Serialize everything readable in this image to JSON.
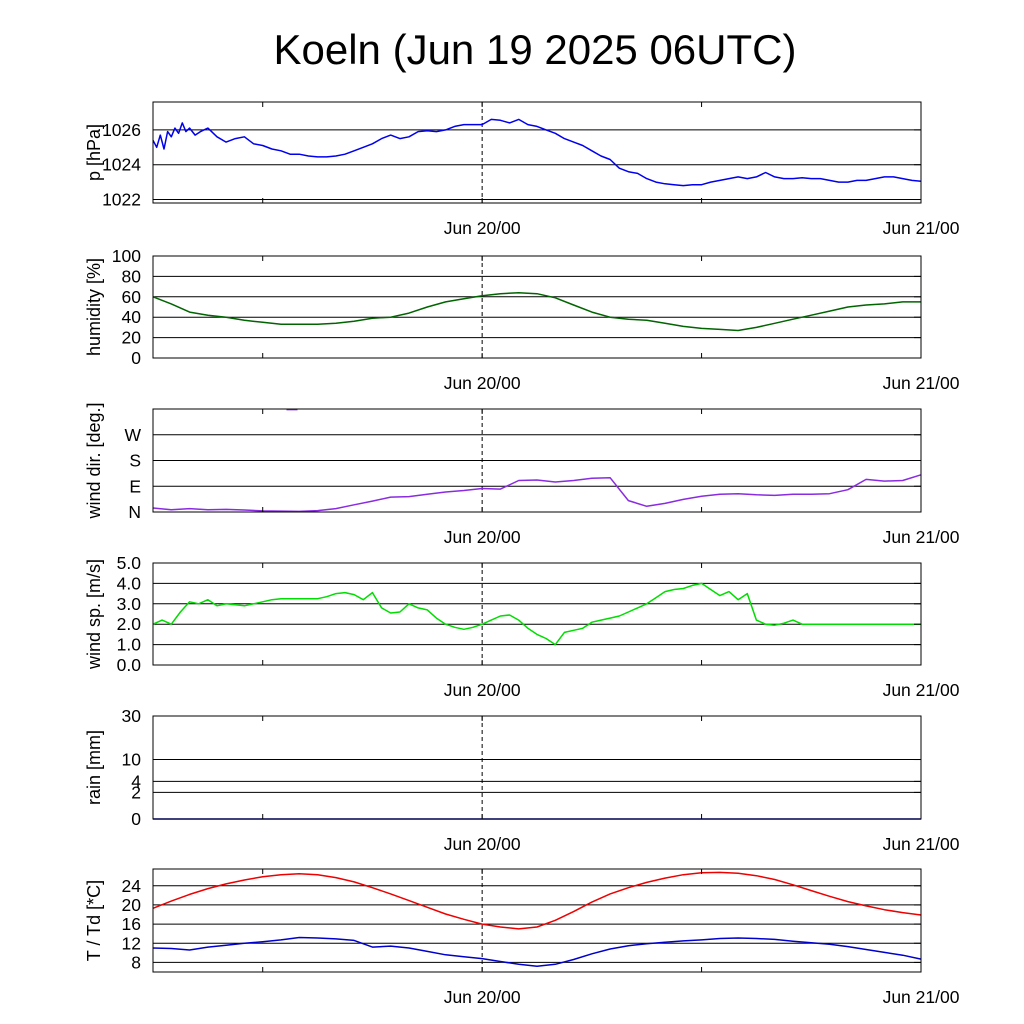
{
  "title": "Koeln (Jun 19 2025 06UTC)",
  "time_labels": [
    "Jun 20/00",
    "Jun 21/00"
  ],
  "chart_data": [
    {
      "type": "line",
      "id": "pressure",
      "ylabel": "p [hPa]",
      "ylim": [
        1021.8,
        1027.6
      ],
      "yticks": [
        1022,
        1024,
        1026
      ],
      "ytick_labels": [
        "1022",
        "1024",
        "1026"
      ],
      "xlim": [
        0,
        42
      ],
      "grid": true,
      "series": [
        {
          "color": "#0000ee",
          "x": [
            0,
            0.2,
            0.4,
            0.6,
            0.8,
            1,
            1.2,
            1.4,
            1.6,
            1.8,
            2,
            2.3,
            2.6,
            3,
            3.5,
            4,
            4.5,
            5,
            5.5,
            6,
            6.5,
            7,
            7.5,
            8,
            8.5,
            9,
            9.5,
            10,
            10.5,
            11,
            11.5,
            12,
            12.5,
            13,
            13.5,
            14,
            14.5,
            15,
            15.5,
            16,
            16.5,
            17,
            17.5,
            18,
            18.5,
            19,
            19.5,
            20,
            20.5,
            21,
            21.5,
            22,
            22.5,
            23,
            23.5,
            24,
            24.5,
            25,
            25.5,
            26,
            26.5,
            27,
            27.5,
            28,
            28.5,
            29,
            29.5,
            30,
            30.5,
            31,
            31.5,
            32,
            32.5,
            33,
            33.5,
            34,
            34.5,
            35,
            35.5,
            36,
            36.5,
            37,
            37.5,
            38,
            38.5,
            39,
            39.5,
            40,
            40.5,
            41,
            41.5,
            42
          ],
          "y": [
            1025.4,
            1025.0,
            1025.7,
            1024.9,
            1025.9,
            1025.6,
            1026.1,
            1025.8,
            1026.4,
            1025.9,
            1026.1,
            1025.7,
            1025.9,
            1026.1,
            1025.6,
            1025.3,
            1025.5,
            1025.6,
            1025.2,
            1025.1,
            1024.9,
            1024.8,
            1024.6,
            1024.6,
            1024.5,
            1024.45,
            1024.45,
            1024.5,
            1024.6,
            1024.8,
            1025.0,
            1025.2,
            1025.5,
            1025.7,
            1025.5,
            1025.6,
            1025.9,
            1025.95,
            1025.9,
            1026.0,
            1026.2,
            1026.3,
            1026.3,
            1026.3,
            1026.6,
            1026.55,
            1026.4,
            1026.6,
            1026.3,
            1026.2,
            1026.0,
            1025.8,
            1025.5,
            1025.3,
            1025.1,
            1024.8,
            1024.5,
            1024.3,
            1023.8,
            1023.6,
            1023.5,
            1023.2,
            1023.0,
            1022.9,
            1022.85,
            1022.8,
            1022.85,
            1022.85,
            1023.0,
            1023.1,
            1023.2,
            1023.3,
            1023.2,
            1023.3,
            1023.55,
            1023.3,
            1023.2,
            1023.2,
            1023.25,
            1023.2,
            1023.2,
            1023.1,
            1023.0,
            1023.0,
            1023.1,
            1023.1,
            1023.2,
            1023.3,
            1023.3,
            1023.2,
            1023.1,
            1023.05
          ]
        }
      ]
    },
    {
      "type": "line",
      "id": "humidity",
      "ylabel": "humidity [%]",
      "ylim": [
        0,
        100
      ],
      "yticks": [
        0,
        20,
        40,
        60,
        80,
        100
      ],
      "ytick_labels": [
        "0",
        "20",
        "40",
        "60",
        "80",
        "100"
      ],
      "xlim": [
        0,
        42
      ],
      "grid": true,
      "series": [
        {
          "color": "#006400",
          "x": [
            0,
            1,
            2,
            3,
            4,
            5,
            6,
            7,
            8,
            9,
            10,
            11,
            12,
            13,
            14,
            15,
            16,
            17,
            18,
            19,
            20,
            21,
            22,
            23,
            24,
            25,
            26,
            27,
            28,
            29,
            30,
            31,
            32,
            33,
            34,
            35,
            36,
            37,
            38,
            39,
            40,
            41,
            42
          ],
          "y": [
            60,
            53,
            45,
            42,
            40,
            37,
            35,
            33,
            33,
            33,
            34,
            36,
            39,
            40,
            44,
            50,
            55,
            58,
            61,
            63,
            64,
            63,
            59,
            52,
            45,
            40,
            38,
            37,
            34,
            31,
            29,
            28,
            27,
            30,
            34,
            38,
            42,
            46,
            50,
            52,
            53,
            55,
            55
          ]
        }
      ]
    },
    {
      "type": "line",
      "id": "wind-direction",
      "ylabel": "wind dir. [deg.]",
      "ylim": [
        0,
        360
      ],
      "yticks": [
        0,
        90,
        180,
        270
      ],
      "ytick_labels": [
        "N",
        "E",
        "S",
        "W"
      ],
      "xlim": [
        0,
        42
      ],
      "grid": true,
      "series": [
        {
          "color": "#8a2be2",
          "x": [
            0,
            1,
            2,
            3,
            4,
            5,
            6,
            7,
            8,
            9,
            10,
            11,
            12,
            13,
            14,
            15,
            16,
            17,
            18,
            19,
            20,
            21,
            22,
            23,
            24,
            25,
            26,
            27,
            28,
            29,
            30,
            31,
            32,
            33,
            34,
            35,
            36,
            37,
            38,
            39,
            40,
            41,
            42
          ],
          "y": [
            14,
            8,
            12,
            8,
            9,
            7,
            4,
            3,
            2,
            5,
            12,
            25,
            38,
            52,
            54,
            62,
            70,
            75,
            82,
            80,
            110,
            112,
            105,
            110,
            118,
            120,
            40,
            20,
            30,
            44,
            55,
            62,
            64,
            60,
            58,
            62,
            62,
            64,
            78,
            114,
            108,
            110,
            130
          ]
        },
        {
          "color": "#8a2be2",
          "x": [
            7.3,
            7.9
          ],
          "y": [
            358,
            358
          ]
        }
      ]
    },
    {
      "type": "line",
      "id": "wind-speed",
      "ylabel": "wind sp. [m/s]",
      "ylim": [
        0,
        5
      ],
      "yticks": [
        0,
        1,
        2,
        3,
        4,
        5
      ],
      "ytick_labels": [
        "0.0",
        "1.0",
        "2.0",
        "3.0",
        "4.0",
        "5.0"
      ],
      "xlim": [
        0,
        42
      ],
      "grid": true,
      "series": [
        {
          "color": "#00dd00",
          "x": [
            0,
            0.5,
            1,
            1.5,
            2,
            2.5,
            3,
            3.5,
            4,
            4.5,
            5,
            5.5,
            6,
            6.5,
            7,
            7.5,
            8,
            8.5,
            9,
            9.5,
            10,
            10.5,
            11,
            11.5,
            12,
            12.5,
            13,
            13.5,
            14,
            14.5,
            15,
            15.5,
            16,
            16.5,
            17,
            17.5,
            18,
            18.5,
            19,
            19.5,
            20,
            20.5,
            21,
            21.5,
            22,
            22.5,
            23,
            23.5,
            24,
            24.5,
            25,
            25.5,
            26,
            26.5,
            27,
            27.5,
            28,
            28.5,
            29,
            29.5,
            30,
            30.5,
            31,
            31.5,
            32,
            32.5,
            33,
            33.5,
            34,
            34.5,
            35,
            35.5,
            36,
            36.5,
            37,
            37.5,
            38,
            38.5,
            39,
            39.5,
            40,
            40.5,
            41,
            41.5,
            42
          ],
          "y": [
            2.0,
            2.2,
            2.0,
            2.6,
            3.1,
            3.0,
            3.2,
            2.9,
            3.0,
            2.95,
            2.9,
            3.0,
            3.1,
            3.2,
            3.25,
            3.25,
            3.25,
            3.25,
            3.25,
            3.35,
            3.5,
            3.55,
            3.45,
            3.2,
            3.55,
            2.8,
            2.55,
            2.6,
            3.0,
            2.8,
            2.7,
            2.3,
            2.0,
            1.85,
            1.75,
            1.85,
            2.0,
            2.2,
            2.4,
            2.45,
            2.2,
            1.8,
            1.5,
            1.3,
            1.0,
            1.6,
            1.7,
            1.8,
            2.1,
            2.2,
            2.3,
            2.4,
            2.6,
            2.8,
            3.0,
            3.3,
            3.6,
            3.7,
            3.75,
            3.9,
            4.0,
            3.7,
            3.4,
            3.6,
            3.2,
            3.5,
            2.2,
            2.0,
            1.95,
            2.05,
            2.2,
            2.0,
            2.0,
            2.0,
            2.0,
            2.0,
            2.0,
            2.0,
            2.0,
            2.0,
            2.0,
            2.0,
            2.0,
            2.0,
            2.0
          ]
        }
      ]
    },
    {
      "type": "line",
      "id": "rain",
      "ylabel": "rain [mm]",
      "ylim": [
        0,
        30
      ],
      "yticks": [
        0,
        2,
        4,
        10,
        30
      ],
      "ytick_labels": [
        "0",
        "2",
        "4",
        "10",
        "30"
      ],
      "xlim": [
        0,
        42
      ],
      "grid": true,
      "scale": "sqrt",
      "series": [
        {
          "color": "#0000ee",
          "x": [
            0,
            42
          ],
          "y": [
            0,
            0
          ]
        }
      ]
    },
    {
      "type": "line",
      "id": "temperature",
      "ylabel": "T / Td [*C]",
      "ylim": [
        6,
        27.5
      ],
      "yticks": [
        8,
        12,
        16,
        20,
        24
      ],
      "ytick_labels": [
        "8",
        "12",
        "16",
        "20",
        "24"
      ],
      "xlim": [
        0,
        42
      ],
      "grid": true,
      "series": [
        {
          "color": "#ee0000",
          "x": [
            0,
            1,
            2,
            3,
            4,
            5,
            6,
            7,
            8,
            9,
            10,
            11,
            12,
            13,
            14,
            15,
            16,
            17,
            18,
            19,
            20,
            21,
            22,
            23,
            24,
            25,
            26,
            27,
            28,
            29,
            30,
            31,
            32,
            33,
            34,
            35,
            36,
            37,
            38,
            39,
            40,
            41,
            42
          ],
          "y": [
            19.3,
            20.8,
            22.2,
            23.4,
            24.4,
            25.2,
            25.9,
            26.3,
            26.5,
            26.3,
            25.7,
            24.8,
            23.6,
            22.3,
            20.9,
            19.5,
            18.1,
            17.0,
            16.0,
            15.4,
            15.0,
            15.4,
            16.8,
            18.6,
            20.6,
            22.3,
            23.6,
            24.7,
            25.6,
            26.3,
            26.7,
            26.8,
            26.6,
            26.1,
            25.3,
            24.2,
            23.0,
            21.8,
            20.7,
            19.8,
            19.0,
            18.4,
            17.9
          ]
        },
        {
          "color": "#0000cc",
          "x": [
            0,
            1,
            2,
            3,
            4,
            5,
            6,
            7,
            8,
            9,
            10,
            11,
            12,
            13,
            14,
            15,
            16,
            17,
            18,
            19,
            20,
            21,
            22,
            23,
            24,
            25,
            26,
            27,
            28,
            29,
            30,
            31,
            32,
            33,
            34,
            35,
            36,
            37,
            38,
            39,
            40,
            41,
            42
          ],
          "y": [
            11.0,
            10.9,
            10.6,
            11.2,
            11.6,
            12.0,
            12.3,
            12.7,
            13.2,
            13.1,
            12.9,
            12.6,
            11.2,
            11.4,
            11.0,
            10.3,
            9.6,
            9.2,
            8.8,
            8.2,
            7.6,
            7.2,
            7.6,
            8.6,
            9.8,
            10.8,
            11.5,
            11.9,
            12.2,
            12.5,
            12.7,
            13.0,
            13.1,
            13.0,
            12.8,
            12.4,
            12.1,
            11.8,
            11.3,
            10.7,
            10.1,
            9.5,
            8.7
          ]
        }
      ]
    }
  ]
}
